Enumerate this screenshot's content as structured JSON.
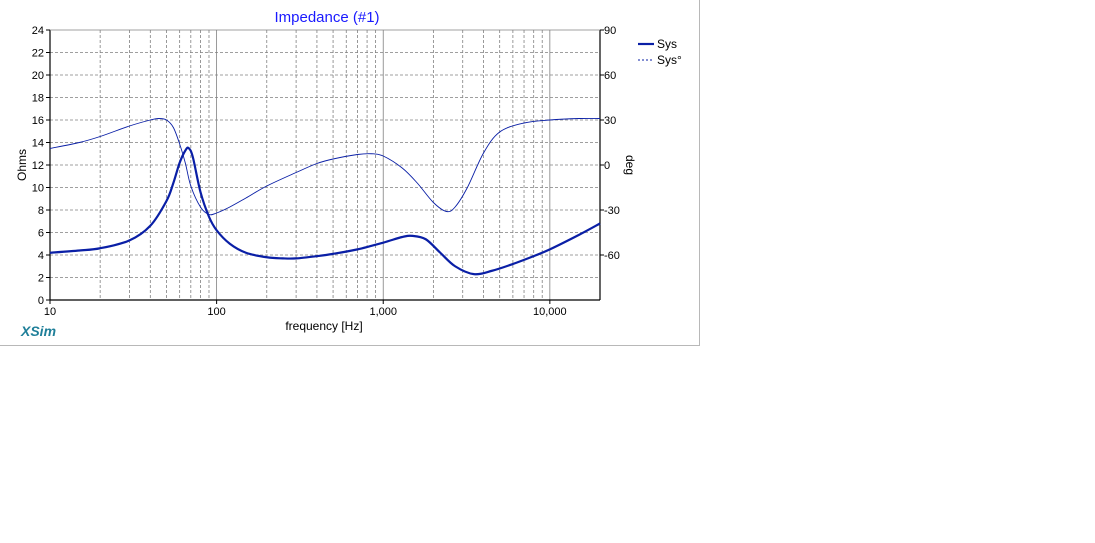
{
  "brand": {
    "label": "XSim"
  },
  "colors": {
    "series": "#0a1fa6",
    "grid": "#808080",
    "title": "#1a1aff",
    "brand": "#1f7f99"
  },
  "chart_data": {
    "type": "line",
    "title": "Impedance (#1)",
    "xlabel": "frequency [Hz]",
    "ylabel": "Ohms",
    "y2label": "deg",
    "xscale": "log",
    "xlim": [
      10,
      20000
    ],
    "ylim": [
      0,
      24
    ],
    "y2lim": [
      -90,
      90
    ],
    "x_ticks": [
      10,
      100,
      1000,
      10000
    ],
    "x_tick_labels": [
      "10",
      "100",
      "1,000",
      "10,000"
    ],
    "y_ticks": [
      0,
      2,
      4,
      6,
      8,
      10,
      12,
      14,
      16,
      18,
      20,
      22,
      24
    ],
    "y_tick_labels": [
      "0",
      "2",
      "4",
      "6",
      "8",
      "10",
      "12",
      "14",
      "16",
      "18",
      "20",
      "22",
      "24"
    ],
    "y2_ticks": [
      -60,
      -30,
      0,
      30,
      60,
      90
    ],
    "y2_tick_labels": [
      "-60",
      "-30",
      "0",
      "30",
      "60",
      "90"
    ],
    "grid": true,
    "legend": "top-right",
    "series": [
      {
        "name": "Sys",
        "axis": "left",
        "style": "thick",
        "x": [
          10,
          15,
          20,
          30,
          40,
          50,
          55,
          60,
          65,
          68,
          72,
          80,
          90,
          100,
          120,
          150,
          200,
          250,
          300,
          400,
          500,
          700,
          1000,
          1300,
          1500,
          1800,
          2200,
          2700,
          3500,
          4500,
          6000,
          8000,
          10000,
          15000,
          20000
        ],
        "values": [
          4.2,
          4.4,
          4.6,
          5.3,
          6.6,
          8.8,
          10.4,
          12.2,
          13.3,
          13.5,
          12.7,
          9.6,
          7.4,
          6.2,
          5.0,
          4.2,
          3.8,
          3.7,
          3.7,
          3.9,
          4.1,
          4.5,
          5.1,
          5.6,
          5.7,
          5.4,
          4.2,
          3.0,
          2.3,
          2.6,
          3.2,
          3.9,
          4.5,
          5.8,
          6.8
        ]
      },
      {
        "name": "Sys°",
        "axis": "right",
        "style": "thin",
        "x": [
          10,
          15,
          20,
          30,
          40,
          45,
          50,
          55,
          60,
          65,
          70,
          80,
          90,
          100,
          120,
          150,
          200,
          300,
          400,
          500,
          700,
          850,
          1000,
          1300,
          1600,
          2000,
          2400,
          2700,
          3200,
          4000,
          5000,
          7000,
          10000,
          15000,
          20000
        ],
        "values": [
          11,
          15,
          19,
          26,
          30,
          31,
          30,
          25,
          14,
          1,
          -14,
          -28,
          -33,
          -32,
          -28,
          -22,
          -14,
          -5,
          1,
          4,
          7,
          7.5,
          6,
          -2,
          -12,
          -25,
          -31,
          -28,
          -15,
          8,
          22,
          28,
          30,
          31,
          31
        ]
      }
    ]
  }
}
